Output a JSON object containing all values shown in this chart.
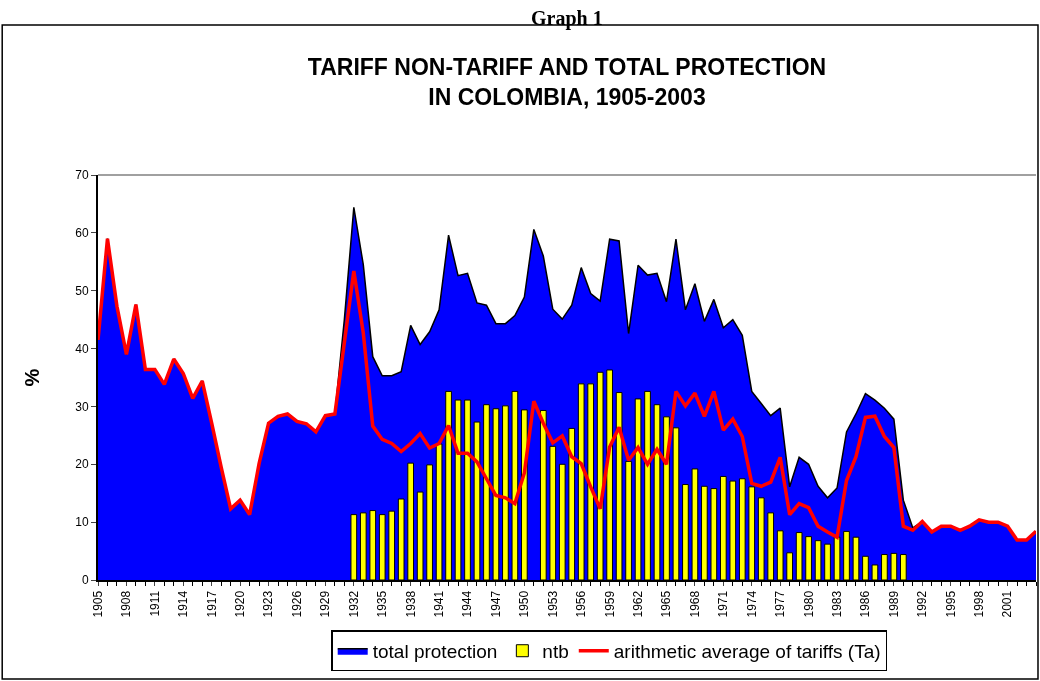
{
  "chart_data": {
    "type": "area",
    "title": "TARIFF NON-TARIFF AND TOTAL PROTECTION\nIN COLOMBIA, 1905-2003",
    "ylabel": "%",
    "annotations": [
      "Graph 1"
    ],
    "categories": [
      "1905",
      null,
      null,
      "1908",
      null,
      null,
      "1911",
      null,
      null,
      "1914",
      null,
      null,
      "1917",
      null,
      null,
      "1920",
      null,
      null,
      "1923",
      null,
      null,
      "1926",
      null,
      null,
      "1929",
      null,
      null,
      "1932",
      null,
      null,
      "1935",
      null,
      null,
      "1938",
      null,
      null,
      "1941",
      null,
      null,
      "1944",
      null,
      null,
      "1947",
      null,
      null,
      "1950",
      null,
      null,
      "1953",
      null,
      null,
      "1956",
      null,
      null,
      "1959",
      null,
      null,
      "1962",
      null,
      null,
      "1965",
      null,
      null,
      "1968",
      null,
      null,
      "1971",
      null,
      null,
      "1974",
      null,
      null,
      "1977",
      null,
      null,
      "1980",
      null,
      null,
      "1983",
      null,
      null,
      "1986",
      null,
      null,
      "1989",
      null,
      null,
      "1992",
      null,
      null,
      "1995",
      null,
      null,
      "1998",
      null,
      null,
      "2001",
      null,
      null,
      null
    ],
    "series": [
      {
        "name": "total protection",
        "color": "#0000ff",
        "values": [
          41.5,
          59,
          47.3,
          39,
          47.6,
          36.4,
          36.4,
          33.8,
          38.2,
          35.7,
          31.4,
          34.4,
          27.1,
          19.5,
          12.3,
          13.8,
          11.3,
          20.1,
          27.1,
          28.3,
          28.7,
          27.4,
          27,
          25.6,
          28.4,
          28.7,
          45,
          64.4,
          54.5,
          38.6,
          35.3,
          35.3,
          36,
          44,
          40.7,
          42.9,
          46.7,
          59.6,
          52.6,
          53,
          47.9,
          47.5,
          44.3,
          44.3,
          45.7,
          48.9,
          60.6,
          56,
          46.8,
          45.1,
          47.5,
          54,
          49.5,
          48.2,
          58.9,
          58.6,
          42.6,
          54.4,
          52.7,
          53,
          48.1,
          58.9,
          46.7,
          51.2,
          44.7,
          48.5,
          43.6,
          45,
          42.3,
          32.6,
          30.5,
          28.4,
          29.7,
          16.1,
          21.2,
          20,
          16.2,
          14.2,
          15.9,
          25.6,
          28.7,
          32.2,
          31.1,
          29.7,
          27.8,
          13.8,
          9,
          10.1,
          8.3,
          9.3,
          9.3,
          8.6,
          9.3,
          10.4,
          10,
          10,
          9.3,
          6.9,
          6.9,
          8.4
        ]
      },
      {
        "name": "ntb",
        "type": "bar",
        "color": "#ffff00",
        "values": [
          null,
          null,
          null,
          null,
          null,
          null,
          null,
          null,
          null,
          null,
          null,
          null,
          null,
          null,
          null,
          null,
          null,
          null,
          null,
          null,
          null,
          null,
          null,
          null,
          null,
          null,
          null,
          11.3,
          11.6,
          12,
          11.3,
          11.9,
          14,
          20.2,
          15.2,
          19.9,
          23.5,
          32.6,
          31.1,
          31.1,
          27.3,
          30.3,
          29.6,
          30.1,
          32.6,
          29.4,
          null,
          29.3,
          23.1,
          20,
          26.2,
          33.9,
          33.9,
          35.9,
          36.3,
          32.4,
          20.5,
          31.3,
          32.6,
          30.3,
          28.2,
          26.3,
          16.5,
          19.2,
          16.2,
          15.8,
          17.9,
          17.1,
          17.5,
          16.1,
          14.2,
          11.6,
          8.5,
          4.7,
          8.2,
          7.5,
          6.8,
          6.2,
          7.4,
          8.4,
          7.4,
          4.1,
          2.6,
          4.4,
          4.6,
          4.4,
          null,
          null,
          null,
          null,
          null,
          null,
          null,
          null,
          null,
          null,
          null,
          null,
          null,
          null
        ]
      },
      {
        "name": "arithmetic average of tariffs (Ta)",
        "type": "line",
        "color": "#ff0000",
        "values": [
          41.5,
          59,
          47.3,
          39,
          47.6,
          36.4,
          36.4,
          33.8,
          38.2,
          35.7,
          31.4,
          34.4,
          27.1,
          19.5,
          12.3,
          13.8,
          11.3,
          20.1,
          27.1,
          28.3,
          28.7,
          27.4,
          27,
          25.6,
          28.4,
          28.7,
          41,
          53.4,
          42.7,
          26.6,
          24.3,
          23.6,
          22.2,
          23.6,
          25.3,
          22.8,
          23.6,
          26.7,
          21.9,
          21.9,
          20.4,
          17.5,
          14.6,
          14.2,
          13.2,
          18.5,
          30.9,
          27.1,
          23.7,
          24.9,
          21.3,
          20.1,
          16.1,
          12.3,
          23,
          26.4,
          20.7,
          22.9,
          20,
          22.6,
          20,
          32.6,
          30.1,
          32.3,
          28.3,
          32.6,
          25.9,
          27.8,
          24.8,
          16.7,
          16.2,
          16.9,
          21.2,
          11.3,
          13.2,
          12.5,
          9.3,
          8.3,
          7.4,
          17.2,
          21.3,
          28.1,
          28.3,
          24.8,
          22.9,
          9.3,
          8.6,
          10.1,
          8.3,
          9.3,
          9.3,
          8.6,
          9.3,
          10.4,
          10,
          10,
          9.3,
          6.9,
          6.9,
          8.4
        ]
      }
    ],
    "ylim": [
      0,
      70
    ],
    "yticks": [
      0,
      10,
      20,
      30,
      40,
      50,
      60,
      70
    ],
    "grid": false,
    "legend": "bottom",
    "line_style": "solid",
    "marker": "none"
  }
}
